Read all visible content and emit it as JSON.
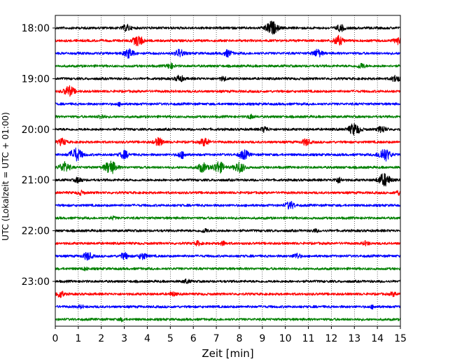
{
  "chart_data": {
    "type": "line",
    "title": "",
    "xlabel": "Zeit  [min]",
    "ylabel": "UTC (Lokalzeit = UTC + 01:00)",
    "xlim": [
      0,
      15
    ],
    "x_ticks": [
      "0",
      "1",
      "2",
      "3",
      "4",
      "5",
      "6",
      "7",
      "8",
      "9",
      "10",
      "11",
      "12",
      "13",
      "14",
      "15"
    ],
    "y_ticks": [
      "18:00",
      "19:00",
      "20:00",
      "21:00",
      "22:00",
      "23:00"
    ],
    "grid": "vertical dotted",
    "trace_colors": [
      "#000000",
      "#ff0000",
      "#0000ff",
      "#008000"
    ],
    "series": [
      {
        "start": "18:00",
        "color": "#000000",
        "bursts": [
          [
            3.1,
            0.5
          ],
          [
            9.4,
            1.0
          ],
          [
            12.4,
            0.5
          ]
        ]
      },
      {
        "start": "18:15",
        "color": "#ff0000",
        "bursts": [
          [
            3.6,
            0.8
          ],
          [
            12.3,
            0.7
          ],
          [
            14.9,
            0.5
          ]
        ]
      },
      {
        "start": "18:30",
        "color": "#0000ff",
        "bursts": [
          [
            3.2,
            0.7
          ],
          [
            5.4,
            0.6
          ],
          [
            7.5,
            0.5
          ],
          [
            11.4,
            0.6
          ]
        ]
      },
      {
        "start": "18:45",
        "color": "#008000",
        "bursts": [
          [
            5.0,
            0.4
          ],
          [
            13.3,
            0.4
          ]
        ]
      },
      {
        "start": "19:00",
        "color": "#000000",
        "bursts": [
          [
            5.4,
            0.5
          ],
          [
            7.3,
            0.3
          ],
          [
            14.8,
            0.5
          ]
        ]
      },
      {
        "start": "19:15",
        "color": "#ff0000",
        "bursts": [
          [
            0.6,
            0.8
          ]
        ]
      },
      {
        "start": "19:30",
        "color": "#0000ff",
        "bursts": [
          [
            2.8,
            0.2
          ]
        ]
      },
      {
        "start": "19:45",
        "color": "#008000",
        "bursts": [
          [
            2.0,
            0.3
          ],
          [
            8.5,
            0.3
          ]
        ]
      },
      {
        "start": "20:00",
        "color": "#000000",
        "bursts": [
          [
            9.1,
            0.4
          ],
          [
            13.0,
            0.9
          ],
          [
            14.2,
            0.5
          ]
        ]
      },
      {
        "start": "20:15",
        "color": "#ff0000",
        "bursts": [
          [
            0.3,
            0.5
          ],
          [
            4.5,
            0.6
          ],
          [
            6.5,
            0.6
          ],
          [
            10.9,
            0.5
          ]
        ]
      },
      {
        "start": "20:30",
        "color": "#0000ff",
        "bursts": [
          [
            0.9,
            1.0
          ],
          [
            3.0,
            0.6
          ],
          [
            5.5,
            0.5
          ],
          [
            8.2,
            0.7
          ],
          [
            14.3,
            1.0
          ]
        ]
      },
      {
        "start": "20:45",
        "color": "#008000",
        "bursts": [
          [
            0.4,
            0.8
          ],
          [
            2.4,
            1.0
          ],
          [
            6.4,
            0.7
          ],
          [
            7.1,
            0.9
          ],
          [
            8.0,
            0.8
          ]
        ]
      },
      {
        "start": "21:00",
        "color": "#000000",
        "bursts": [
          [
            1.0,
            0.4
          ],
          [
            12.3,
            0.4
          ],
          [
            14.3,
            1.0
          ]
        ]
      },
      {
        "start": "21:15",
        "color": "#ff0000",
        "bursts": [
          [
            1.1,
            0.3
          ],
          [
            14.9,
            0.3
          ]
        ]
      },
      {
        "start": "21:30",
        "color": "#0000ff",
        "bursts": [
          [
            10.2,
            0.6
          ]
        ]
      },
      {
        "start": "21:45",
        "color": "#008000",
        "bursts": [
          [
            2.5,
            0.2
          ]
        ]
      },
      {
        "start": "22:00",
        "color": "#000000",
        "bursts": [
          [
            6.5,
            0.3
          ],
          [
            11.3,
            0.2
          ]
        ]
      },
      {
        "start": "22:15",
        "color": "#ff0000",
        "bursts": [
          [
            6.2,
            0.3
          ],
          [
            7.3,
            0.3
          ],
          [
            13.5,
            0.3
          ]
        ]
      },
      {
        "start": "22:30",
        "color": "#0000ff",
        "bursts": [
          [
            1.4,
            0.6
          ],
          [
            3.0,
            0.5
          ],
          [
            3.8,
            0.5
          ],
          [
            10.5,
            0.4
          ]
        ]
      },
      {
        "start": "22:45",
        "color": "#008000",
        "bursts": [
          [
            1.3,
            0.2
          ]
        ]
      },
      {
        "start": "23:00",
        "color": "#000000",
        "bursts": [
          [
            5.7,
            0.3
          ]
        ]
      },
      {
        "start": "23:15",
        "color": "#ff0000",
        "bursts": [
          [
            0.2,
            0.5
          ],
          [
            5.1,
            0.3
          ],
          [
            14.7,
            0.3
          ]
        ]
      },
      {
        "start": "23:30",
        "color": "#0000ff",
        "bursts": [
          [
            1.1,
            0.2
          ],
          [
            13.8,
            0.2
          ]
        ]
      },
      {
        "start": "23:45",
        "color": "#008000",
        "bursts": [
          [
            2.9,
            0.2
          ]
        ]
      }
    ]
  }
}
